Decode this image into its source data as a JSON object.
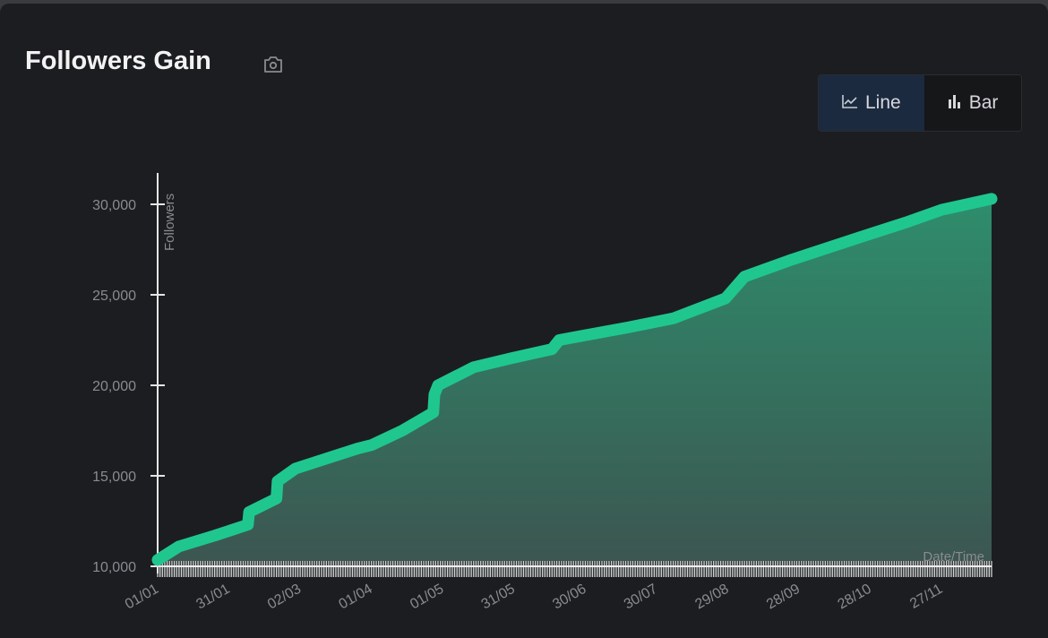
{
  "header": {
    "title": "Followers Gain",
    "camera_icon": "camera-icon"
  },
  "toggle": {
    "line_label": "Line",
    "bar_label": "Bar",
    "selected": "Line"
  },
  "colors": {
    "line": "#1fc78f",
    "fill_top": "#2e8d6c",
    "fill_bottom": "#3c5550",
    "axis": "#e6e6e6",
    "tick_text": "#8a8b90"
  },
  "chart_data": {
    "type": "area",
    "title": "Followers Gain",
    "xlabel": "Date/Time",
    "ylabel": "Followers",
    "ylim": [
      10000,
      30000
    ],
    "yticks": [
      10000,
      15000,
      20000,
      25000,
      30000
    ],
    "ytick_labels": [
      "10,000",
      "15,000",
      "20,000",
      "25,000",
      "30,000"
    ],
    "xlim_days": [
      0,
      351
    ],
    "xtick_days": [
      0,
      30,
      60,
      90,
      120,
      150,
      180,
      210,
      240,
      270,
      300,
      330
    ],
    "xtick_labels": [
      "01/01",
      "31/01",
      "02/03",
      "01/04",
      "01/05",
      "31/05",
      "30/06",
      "30/07",
      "29/08",
      "28/09",
      "28/10",
      "27/11"
    ],
    "x_days": [
      0,
      9,
      24,
      38,
      38.5,
      50,
      50.5,
      58,
      84,
      90,
      103,
      116,
      116.5,
      118,
      133,
      149,
      166,
      169,
      198,
      217,
      239,
      247,
      266,
      296,
      315,
      330,
      351
    ],
    "values": [
      10350,
      11100,
      11700,
      12300,
      13000,
      13750,
      14700,
      15400,
      16500,
      16700,
      17500,
      18500,
      19500,
      20000,
      21000,
      21500,
      22000,
      22500,
      23200,
      23700,
      24800,
      26000,
      26900,
      28200,
      29000,
      29700,
      30300
    ]
  }
}
